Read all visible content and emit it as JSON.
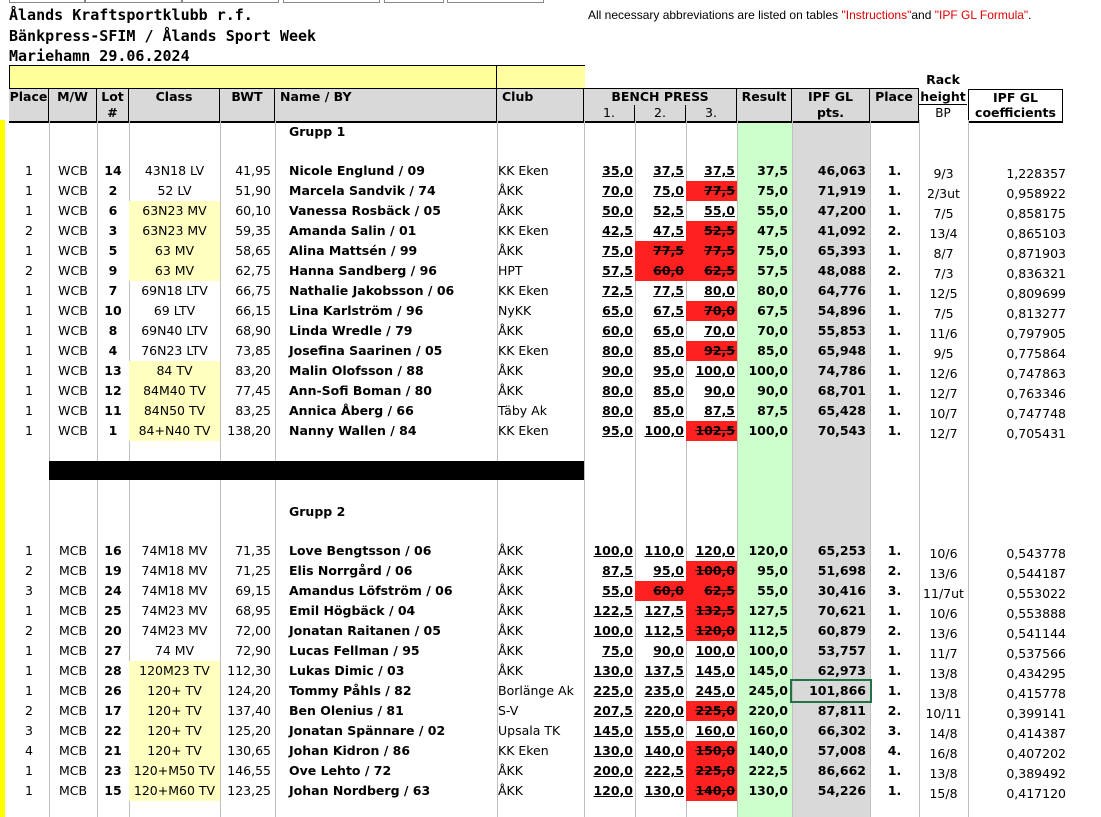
{
  "header": {
    "club": "Ålands Kraftsportklubb r.f.",
    "event": "Bänkpress-SFIM / Ålands Sport Week",
    "place_date": "Mariehamn 29.06.2024",
    "note_prefix": "All necessary abbreviations are listed on tables ",
    "note_instr": "\"Instructions\"",
    "note_and": "and ",
    "note_ipf": "\"IPF GL Formula\"",
    "note_end": "."
  },
  "columns": {
    "place": "Place",
    "mw": "M/W",
    "lot_a": "Lot",
    "lot_b": "#",
    "class": "Class",
    "bwt": "BWT",
    "name": "Name / BY",
    "club": "Club",
    "bench": "BENCH PRESS",
    "a1": "1.",
    "a2": "2.",
    "a3": "3.",
    "result": "Result",
    "ipf_a": "IPF GL",
    "ipf_b": "pts.",
    "place2": "Place",
    "rack_a": "Rack",
    "rack_b": "height",
    "rack_c": "BP",
    "coef_a": "IPF GL",
    "coef_b": "coefficients"
  },
  "groups": {
    "g1": "Grupp 1",
    "g2": "Grupp 2"
  },
  "rows1": [
    {
      "place": "1",
      "mw": "WCB",
      "lot": "14",
      "cls": "43N18 LV",
      "bwt": "41,95",
      "name": "Nicole Englund / 09",
      "club": "KK Eken",
      "a1": "35,0",
      "a2": "37,5",
      "a3": "37,5",
      "res": "37,5",
      "ipf": "46,063",
      "pl": "1.",
      "rack": "9/3",
      "coef": "1,228357"
    },
    {
      "place": "1",
      "mw": "WCB",
      "lot": "2",
      "cls": "52 LV",
      "bwt": "51,90",
      "name": "Marcela Sandvik / 74",
      "club": "ÅKK",
      "a1": "70,0",
      "a2": "75,0",
      "a3": "77,5",
      "res": "75,0",
      "ipf": "71,919",
      "pl": "1.",
      "rack": "2/3ut",
      "coef": "0,958922"
    },
    {
      "place": "1",
      "mw": "WCB",
      "lot": "6",
      "cls": "63N23 MV",
      "bwt": "60,10",
      "name": "Vanessa Rosbäck / 05",
      "club": "ÅKK",
      "a1": "50,0",
      "a2": "52,5",
      "a3": "55,0",
      "res": "55,0",
      "ipf": "47,200",
      "pl": "1.",
      "rack": "7/5",
      "coef": "0,858175"
    },
    {
      "place": "2",
      "mw": "WCB",
      "lot": "3",
      "cls": "63N23 MV",
      "bwt": "59,35",
      "name": "Amanda Salin / 01",
      "club": "KK Eken",
      "a1": "42,5",
      "a2": "47,5",
      "a3": "52,5",
      "res": "47,5",
      "ipf": "41,092",
      "pl": "2.",
      "rack": "13/4",
      "coef": "0,865103"
    },
    {
      "place": "1",
      "mw": "WCB",
      "lot": "5",
      "cls": "63 MV",
      "bwt": "58,65",
      "name": "Alina Mattsén / 99",
      "club": "ÅKK",
      "a1": "75,0",
      "a2": "77,5",
      "a3": "77,5",
      "res": "75,0",
      "ipf": "65,393",
      "pl": "1.",
      "rack": "8/7",
      "coef": "0,871903"
    },
    {
      "place": "2",
      "mw": "WCB",
      "lot": "9",
      "cls": "63 MV",
      "bwt": "62,75",
      "name": "Hanna Sandberg / 96",
      "club": "HPT",
      "a1": "57,5",
      "a2": "60,0",
      "a3": "62,5",
      "res": "57,5",
      "ipf": "48,088",
      "pl": "2.",
      "rack": "7/3",
      "coef": "0,836321"
    },
    {
      "place": "1",
      "mw": "WCB",
      "lot": "7",
      "cls": "69N18 LTV",
      "bwt": "66,75",
      "name": "Nathalie Jakobsson / 06",
      "club": "KK Eken",
      "a1": "72,5",
      "a2": "77,5",
      "a3": "80,0",
      "res": "80,0",
      "ipf": "64,776",
      "pl": "1.",
      "rack": "12/5",
      "coef": "0,809699"
    },
    {
      "place": "1",
      "mw": "WCB",
      "lot": "10",
      "cls": "69 LTV",
      "bwt": "66,15",
      "name": "Lina Karlström / 96",
      "club": "NyKK",
      "a1": "65,0",
      "a2": "67,5",
      "a3": "70,0",
      "res": "67,5",
      "ipf": "54,896",
      "pl": "1.",
      "rack": "7/5",
      "coef": "0,813277"
    },
    {
      "place": "1",
      "mw": "WCB",
      "lot": "8",
      "cls": "69N40 LTV",
      "bwt": "68,90",
      "name": "Linda Wredle / 79",
      "club": "ÅKK",
      "a1": "60,0",
      "a2": "65,0",
      "a3": "70,0",
      "res": "70,0",
      "ipf": "55,853",
      "pl": "1.",
      "rack": "11/6",
      "coef": "0,797905"
    },
    {
      "place": "1",
      "mw": "WCB",
      "lot": "4",
      "cls": "76N23 LTV",
      "bwt": "73,85",
      "name": "Josefina Saarinen / 05",
      "club": "KK Eken",
      "a1": "80,0",
      "a2": "85,0",
      "a3": "92,5",
      "res": "85,0",
      "ipf": "65,948",
      "pl": "1.",
      "rack": "9/5",
      "coef": "0,775864"
    },
    {
      "place": "1",
      "mw": "WCB",
      "lot": "13",
      "cls": "84 TV",
      "bwt": "83,20",
      "name": "Malin Olofsson / 88",
      "club": "ÅKK",
      "a1": "90,0",
      "a2": "95,0",
      "a3": "100,0",
      "res": "100,0",
      "ipf": "74,786",
      "pl": "1.",
      "rack": "12/6",
      "coef": "0,747863"
    },
    {
      "place": "1",
      "mw": "WCB",
      "lot": "12",
      "cls": "84M40 TV",
      "bwt": "77,45",
      "name": "Ann-Sofi Boman / 80",
      "club": "ÅKK",
      "a1": "80,0",
      "a2": "85,0",
      "a3": "90,0",
      "res": "90,0",
      "ipf": "68,701",
      "pl": "1.",
      "rack": "12/7",
      "coef": "0,763346"
    },
    {
      "place": "1",
      "mw": "WCB",
      "lot": "11",
      "cls": "84N50 TV",
      "bwt": "83,25",
      "name": "Annica Åberg / 66",
      "club": "Täby Ak",
      "a1": "80,0",
      "a2": "85,0",
      "a3": "87,5",
      "res": "87,5",
      "ipf": "65,428",
      "pl": "1.",
      "rack": "10/7",
      "coef": "0,747748"
    },
    {
      "place": "1",
      "mw": "WCB",
      "lot": "1",
      "cls": "84+N40 TV",
      "bwt": "138,20",
      "name": "Nanny Wallen / 84",
      "club": "KK Eken",
      "a1": "95,0",
      "a2": "100,0",
      "a3": "102,5",
      "res": "100,0",
      "ipf": "70,543",
      "pl": "1.",
      "rack": "12/7",
      "coef": "0,705431"
    }
  ],
  "rows2": [
    {
      "place": "1",
      "mw": "MCB",
      "lot": "16",
      "cls": "74M18 MV",
      "bwt": "71,35",
      "name": "Love Bengtsson / 06",
      "club": "ÅKK",
      "a1": "100,0",
      "a2": "110,0",
      "a3": "120,0",
      "res": "120,0",
      "ipf": "65,253",
      "pl": "1.",
      "rack": "10/6",
      "coef": "0,543778"
    },
    {
      "place": "2",
      "mw": "MCB",
      "lot": "19",
      "cls": "74M18 MV",
      "bwt": "71,25",
      "name": "Elis Norrgård / 06",
      "club": "ÅKK",
      "a1": "87,5",
      "a2": "95,0",
      "a3": "100,0",
      "res": "95,0",
      "ipf": "51,698",
      "pl": "2.",
      "rack": "13/6",
      "coef": "0,544187"
    },
    {
      "place": "3",
      "mw": "MCB",
      "lot": "24",
      "cls": "74M18 MV",
      "bwt": "69,15",
      "name": "Amandus Löfström / 06",
      "club": "ÅKK",
      "a1": "55,0",
      "a2": "60,0",
      "a3": "62,5",
      "res": "55,0",
      "ipf": "30,416",
      "pl": "3.",
      "rack": "11/7ut",
      "coef": "0,553022"
    },
    {
      "place": "1",
      "mw": "MCB",
      "lot": "25",
      "cls": "74M23 MV",
      "bwt": "68,95",
      "name": "Emil Högbäck / 04",
      "club": "ÅKK",
      "a1": "122,5",
      "a2": "127,5",
      "a3": "132,5",
      "res": "127,5",
      "ipf": "70,621",
      "pl": "1.",
      "rack": "10/6",
      "coef": "0,553888"
    },
    {
      "place": "2",
      "mw": "MCB",
      "lot": "20",
      "cls": "74M23 MV",
      "bwt": "72,00",
      "name": "Jonatan Raitanen / 05",
      "club": "ÅKK",
      "a1": "100,0",
      "a2": "112,5",
      "a3": "120,0",
      "res": "112,5",
      "ipf": "60,879",
      "pl": "2.",
      "rack": "13/6",
      "coef": "0,541144"
    },
    {
      "place": "1",
      "mw": "MCB",
      "lot": "27",
      "cls": "74 MV",
      "bwt": "72,90",
      "name": "Lucas Fellman / 95",
      "club": "ÅKK",
      "a1": "75,0",
      "a2": "90,0",
      "a3": "100,0",
      "res": "100,0",
      "ipf": "53,757",
      "pl": "1.",
      "rack": "11/7",
      "coef": "0,537566"
    },
    {
      "place": "1",
      "mw": "MCB",
      "lot": "28",
      "cls": "120M23 TV",
      "bwt": "112,30",
      "name": "Lukas Dimic / 03",
      "club": "ÅKK",
      "a1": "130,0",
      "a2": "137,5",
      "a3": "145,0",
      "res": "145,0",
      "ipf": "62,973",
      "pl": "1.",
      "rack": "13/8",
      "coef": "0,434295"
    },
    {
      "place": "1",
      "mw": "MCB",
      "lot": "26",
      "cls": "120+ TV",
      "bwt": "124,20",
      "name": "Tommy Påhls / 82",
      "club": "Borlänge Ak",
      "a1": "225,0",
      "a2": "235,0",
      "a3": "245,0",
      "res": "245,0",
      "ipf": "101,866",
      "pl": "1.",
      "rack": "13/8",
      "coef": "0,415778"
    },
    {
      "place": "2",
      "mw": "MCB",
      "lot": "17",
      "cls": "120+ TV",
      "bwt": "137,40",
      "name": "Ben Olenius / 81",
      "club": "S-V",
      "a1": "207,5",
      "a2": "220,0",
      "a3": "225,0",
      "res": "220,0",
      "ipf": "87,811",
      "pl": "2.",
      "rack": "10/11",
      "coef": "0,399141"
    },
    {
      "place": "3",
      "mw": "MCB",
      "lot": "22",
      "cls": "120+ TV",
      "bwt": "125,20",
      "name": "Jonatan Spännare / 02",
      "club": "Upsala TK",
      "a1": "145,0",
      "a2": "155,0",
      "a3": "160,0",
      "res": "160,0",
      "ipf": "66,302",
      "pl": "3.",
      "rack": "14/8",
      "coef": "0,414387"
    },
    {
      "place": "4",
      "mw": "MCB",
      "lot": "21",
      "cls": "120+ TV",
      "bwt": "130,65",
      "name": "Johan Kidron / 86",
      "club": "KK Eken",
      "a1": "130,0",
      "a2": "140,0",
      "a3": "150,0",
      "res": "140,0",
      "ipf": "57,008",
      "pl": "4.",
      "rack": "16/8",
      "coef": "0,407202"
    },
    {
      "place": "1",
      "mw": "MCB",
      "lot": "23",
      "cls": "120+M50 TV",
      "bwt": "146,55",
      "name": "Ove Lehto / 72",
      "club": "ÅKK",
      "a1": "200,0",
      "a2": "222,5",
      "a3": "225,0",
      "res": "222,5",
      "ipf": "86,662",
      "pl": "1.",
      "rack": "13/8",
      "coef": "0,389492"
    },
    {
      "place": "1",
      "mw": "MCB",
      "lot": "15",
      "cls": "120+M60 TV",
      "bwt": "123,25",
      "name": "Johan Nordberg / 63",
      "club": "ÅKK",
      "a1": "120,0",
      "a2": "130,0",
      "a3": "140,0",
      "res": "130,0",
      "ipf": "54,226",
      "pl": "1.",
      "rack": "15/8",
      "coef": "0,417120"
    }
  ]
}
